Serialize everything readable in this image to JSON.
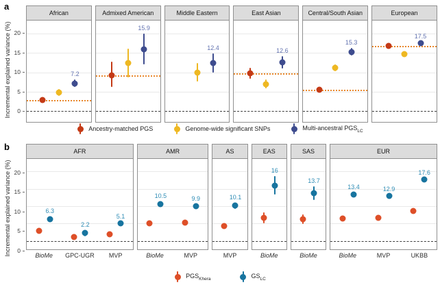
{
  "chart_data": [
    {
      "panel_label": "a",
      "type": "pointrange",
      "ylabel": "Incremental explained variance (%)",
      "yticks": [
        0,
        5,
        10,
        15,
        20
      ],
      "ylim": [
        -2.8,
        23.4
      ],
      "grid": true,
      "zero_line": "dashed",
      "ref_line_style": "dotted",
      "ref_color": "#e8872b",
      "label_color": "#6272b0",
      "legend_position": "bottom-center",
      "slot_x": [
        25,
        50,
        75
      ],
      "series": [
        {
          "key": "matched",
          "label": "Ancestry-matched PGS",
          "sub": "",
          "color": "#c43a16"
        },
        {
          "key": "gwas",
          "label": "Genome-wide significant SNPs",
          "sub": "",
          "color": "#eeb822"
        },
        {
          "key": "multi",
          "label": "Multi-ancestral PGS",
          "sub": "LC",
          "color": "#3e4c8e"
        }
      ],
      "facets": [
        {
          "title": "African",
          "flex": 1,
          "ref": 2.8,
          "points": [
            {
              "series": "matched",
              "slot": 0,
              "y": 2.8,
              "lo": 2.4,
              "hi": 3.2
            },
            {
              "series": "gwas",
              "slot": 1,
              "y": 4.8,
              "lo": 3.9,
              "hi": 5.7
            },
            {
              "series": "multi",
              "slot": 2,
              "y": 7.2,
              "lo": 6.3,
              "hi": 8.1,
              "label": "7.2"
            }
          ]
        },
        {
          "title": "Admixed American",
          "flex": 1,
          "ref": 9.3,
          "points": [
            {
              "series": "matched",
              "slot": 0,
              "y": 9.3,
              "lo": 6.2,
              "hi": 12.8
            },
            {
              "series": "gwas",
              "slot": 1,
              "y": 12.4,
              "lo": 8.7,
              "hi": 16.1
            },
            {
              "series": "multi",
              "slot": 2,
              "y": 15.9,
              "lo": 12.1,
              "hi": 20.1,
              "label": "15.9"
            }
          ]
        },
        {
          "title": "Middle Eastern",
          "flex": 1,
          "ref": null,
          "points": [
            {
              "series": "gwas",
              "slot": 1,
              "y": 10.0,
              "lo": 7.6,
              "hi": 12.4
            },
            {
              "series": "multi",
              "slot": 2,
              "y": 12.4,
              "lo": 9.9,
              "hi": 14.9,
              "label": "12.4"
            }
          ]
        },
        {
          "title": "East Asian",
          "flex": 1,
          "ref": 9.8,
          "points": [
            {
              "series": "matched",
              "slot": 0,
              "y": 9.8,
              "lo": 8.4,
              "hi": 11.2
            },
            {
              "series": "gwas",
              "slot": 1,
              "y": 7.0,
              "lo": 5.9,
              "hi": 8.1
            },
            {
              "series": "multi",
              "slot": 2,
              "y": 12.6,
              "lo": 11.0,
              "hi": 14.2,
              "label": "12.6"
            }
          ]
        },
        {
          "title": "Central/South Asian",
          "flex": 1,
          "ref": 5.5,
          "points": [
            {
              "series": "matched",
              "slot": 0,
              "y": 5.5,
              "lo": 4.9,
              "hi": 6.1
            },
            {
              "series": "gwas",
              "slot": 1,
              "y": 11.2,
              "lo": 10.3,
              "hi": 12.1
            },
            {
              "series": "multi",
              "slot": 2,
              "y": 15.3,
              "lo": 14.3,
              "hi": 16.3,
              "label": "15.3"
            }
          ]
        },
        {
          "title": "European",
          "flex": 1,
          "ref": 16.9,
          "points": [
            {
              "series": "matched",
              "slot": 0,
              "y": 16.9,
              "lo": 16.5,
              "hi": 17.3
            },
            {
              "series": "gwas",
              "slot": 1,
              "y": 14.8,
              "lo": 14.3,
              "hi": 15.3
            },
            {
              "series": "multi",
              "slot": 2,
              "y": 17.5,
              "lo": 17.1,
              "hi": 17.9,
              "label": "17.5"
            }
          ]
        }
      ]
    },
    {
      "panel_label": "b",
      "type": "pointrange",
      "ylabel": "Incremental explained variance (%)",
      "yticks": [
        0,
        5,
        10,
        15,
        20
      ],
      "ylim": [
        -2.5,
        23.6
      ],
      "grid": true,
      "zero_line": "dashed",
      "label_color": "#2e8cb5",
      "legend_position": "bottom-center",
      "series": [
        {
          "key": "khera",
          "label": "PGS",
          "sub": "Khera",
          "color": "#de4f28"
        },
        {
          "key": "gs",
          "label": "GS",
          "sub": "LC",
          "color": "#17749f"
        }
      ],
      "facets": [
        {
          "title": "AFR",
          "flex": 3,
          "categories": [
            {
              "label": "BioMe",
              "italic": true
            },
            {
              "label": "GPC-UGR",
              "italic": false
            },
            {
              "label": "MVP",
              "italic": false
            }
          ],
          "points": [
            {
              "series": "khera",
              "cat": 0,
              "y": 2.8,
              "lo": 2.4,
              "hi": 3.2
            },
            {
              "series": "gs",
              "cat": 0,
              "y": 6.3,
              "lo": 5.5,
              "hi": 7.1,
              "label": "6.3"
            },
            {
              "series": "khera",
              "cat": 1,
              "y": 1.1,
              "lo": 0.6,
              "hi": 1.6
            },
            {
              "series": "gs",
              "cat": 1,
              "y": 2.2,
              "lo": 1.3,
              "hi": 3.1,
              "label": "2.2"
            },
            {
              "series": "khera",
              "cat": 2,
              "y": 1.9,
              "lo": 1.7,
              "hi": 2.1
            },
            {
              "series": "gs",
              "cat": 2,
              "y": 5.1,
              "lo": 4.8,
              "hi": 5.4,
              "label": "5.1"
            }
          ]
        },
        {
          "title": "AMR",
          "flex": 2,
          "categories": [
            {
              "label": "BioMe",
              "italic": true
            },
            {
              "label": "MVP",
              "italic": false
            }
          ],
          "points": [
            {
              "series": "khera",
              "cat": 0,
              "y": 5.0,
              "lo": 4.4,
              "hi": 5.6
            },
            {
              "series": "gs",
              "cat": 0,
              "y": 10.5,
              "lo": 9.7,
              "hi": 11.3,
              "label": "10.5"
            },
            {
              "series": "khera",
              "cat": 1,
              "y": 5.2,
              "lo": 4.6,
              "hi": 5.8
            },
            {
              "series": "gs",
              "cat": 1,
              "y": 9.9,
              "lo": 9.2,
              "hi": 10.6,
              "label": "9.9"
            }
          ]
        },
        {
          "title": "AS",
          "flex": 1,
          "categories": [
            {
              "label": "MVP",
              "italic": false
            }
          ],
          "points": [
            {
              "series": "khera",
              "cat": 0,
              "y": 4.3,
              "lo": 3.7,
              "hi": 4.9
            },
            {
              "series": "gs",
              "cat": 0,
              "y": 10.1,
              "lo": 9.2,
              "hi": 11.0,
              "label": "10.1"
            }
          ]
        },
        {
          "title": "EAS",
          "flex": 1,
          "categories": [
            {
              "label": "BioMe",
              "italic": true
            }
          ],
          "points": [
            {
              "series": "khera",
              "cat": 0,
              "y": 6.7,
              "lo": 5.1,
              "hi": 8.3
            },
            {
              "series": "gs",
              "cat": 0,
              "y": 16,
              "lo": 13.4,
              "hi": 18.6,
              "label": "16"
            }
          ]
        },
        {
          "title": "SAS",
          "flex": 1,
          "categories": [
            {
              "label": "BioMe",
              "italic": true
            }
          ],
          "points": [
            {
              "series": "khera",
              "cat": 0,
              "y": 6.2,
              "lo": 4.8,
              "hi": 7.6
            },
            {
              "series": "gs",
              "cat": 0,
              "y": 13.7,
              "lo": 11.7,
              "hi": 15.7,
              "label": "13.7"
            }
          ]
        },
        {
          "title": "EUR",
          "flex": 3,
          "categories": [
            {
              "label": "BioMe",
              "italic": true
            },
            {
              "label": "MVP",
              "italic": false
            },
            {
              "label": "UKBB",
              "italic": false
            }
          ],
          "points": [
            {
              "series": "khera",
              "cat": 0,
              "y": 6.5,
              "lo": 6.2,
              "hi": 6.8
            },
            {
              "series": "gs",
              "cat": 0,
              "y": 13.4,
              "lo": 12.8,
              "hi": 14.0,
              "label": "13.4"
            },
            {
              "series": "khera",
              "cat": 1,
              "y": 6.7,
              "lo": 6.5,
              "hi": 6.9
            },
            {
              "series": "gs",
              "cat": 1,
              "y": 12.9,
              "lo": 12.5,
              "hi": 13.3,
              "label": "12.9"
            },
            {
              "series": "khera",
              "cat": 2,
              "y": 8.7,
              "lo": 8.4,
              "hi": 9.0
            },
            {
              "series": "gs",
              "cat": 2,
              "y": 17.6,
              "lo": 17.2,
              "hi": 18.0,
              "label": "17.6"
            }
          ]
        }
      ]
    }
  ]
}
